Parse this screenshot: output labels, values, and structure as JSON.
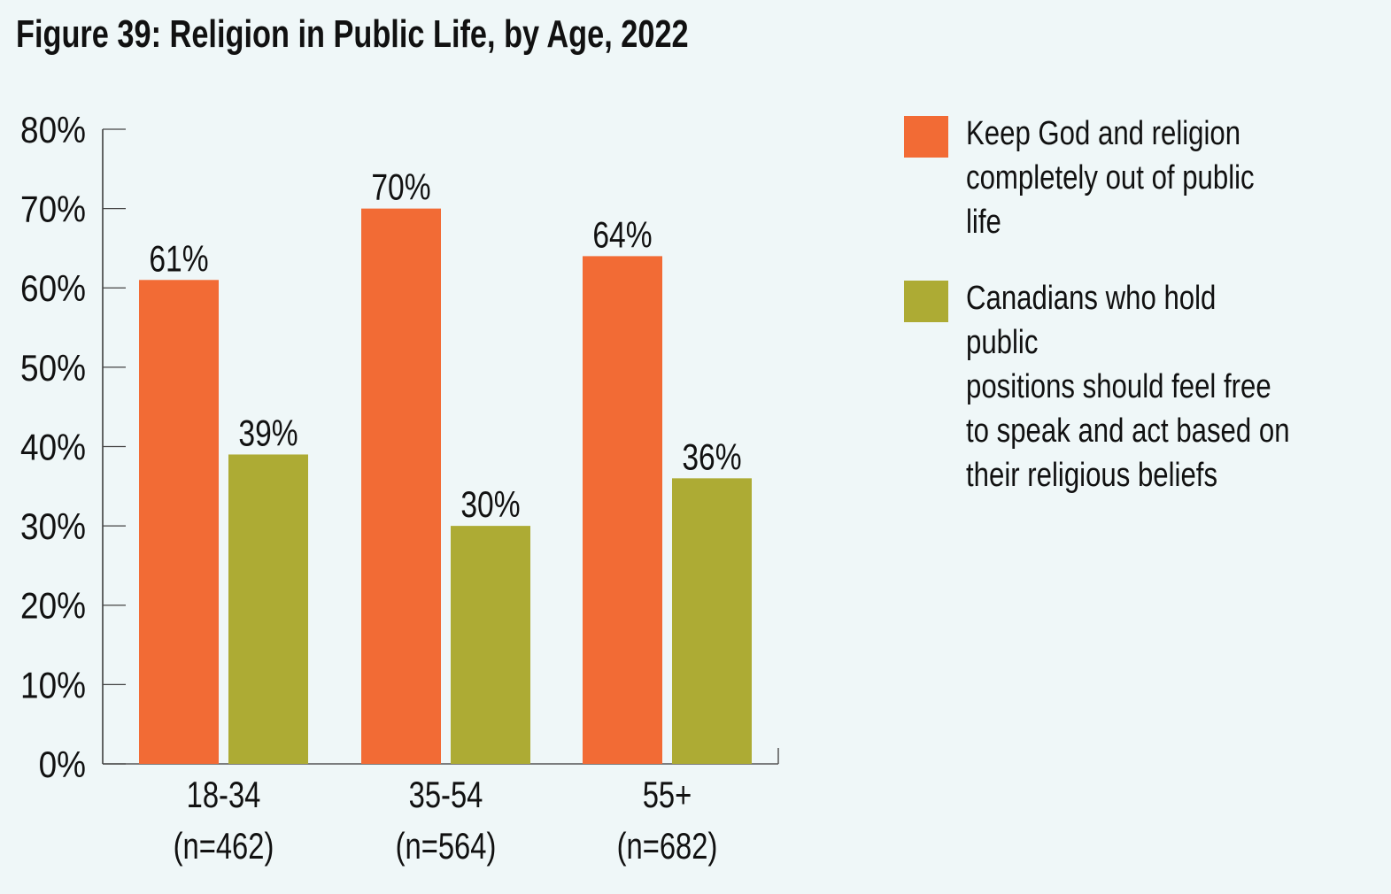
{
  "chart_data": {
    "type": "bar",
    "title": "Figure 39: Religion in Public Life, by Age, 2022",
    "xlabel": "",
    "ylabel": "",
    "ylim": [
      0,
      80
    ],
    "yticks": [
      "0%",
      "10%",
      "20%",
      "30%",
      "40%",
      "50%",
      "60%",
      "70%",
      "80%"
    ],
    "ytick_values": [
      0,
      10,
      20,
      30,
      40,
      50,
      60,
      70,
      80
    ],
    "categories": [
      "18-34",
      "35-54",
      "55+"
    ],
    "category_sublabels": [
      "(n=462)",
      "(n=564)",
      "(n=682)"
    ],
    "series": [
      {
        "name": "Keep God and religion completely out of public life",
        "color": "#f26b35",
        "values": [
          61,
          70,
          64
        ],
        "labels": [
          "61%",
          "70%",
          "64%"
        ]
      },
      {
        "name": "Canadians who hold public positions should feel free to speak and act based on their religious beliefs",
        "color": "#adab34",
        "values": [
          39,
          30,
          36
        ],
        "labels": [
          "39%",
          "30%",
          "36%"
        ]
      }
    ],
    "legend_position": "right",
    "grid": false
  },
  "legend": [
    {
      "text": "Keep God and religion\ncompletely out of public life",
      "color": "#f26b35"
    },
    {
      "text": "Canadians who hold public\npositions should feel free\nto speak and act based on\ntheir religious beliefs",
      "color": "#adab34"
    }
  ]
}
